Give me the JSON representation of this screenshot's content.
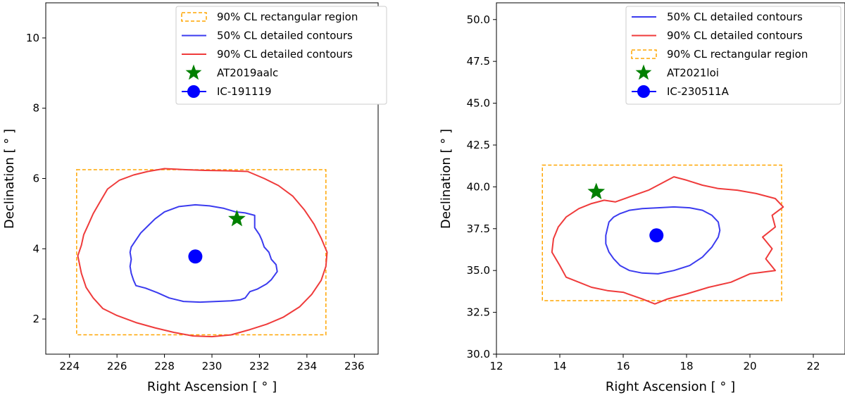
{
  "colors": {
    "blue": "#3b3bef",
    "red": "#ef3b3b",
    "orange": "#ffa500",
    "green": "#008000",
    "ic_blue": "#0000ff"
  },
  "chart_data": [
    {
      "type": "scatter",
      "xlabel": "Right Ascension [$^\\circ$]",
      "xlabel_text": "Right Ascension [ ° ]",
      "ylabel_text": "Declination [ ° ]",
      "xlim": [
        223,
        237
      ],
      "ylim": [
        1,
        11
      ],
      "xticks": [
        224,
        226,
        228,
        230,
        232,
        234,
        236
      ],
      "yticks": [
        2,
        4,
        6,
        8,
        10
      ],
      "legend_position": "top-right",
      "legend": [
        {
          "label": "90% CL rectangular region",
          "kind": "rect",
          "color": "orange"
        },
        {
          "label": "50% CL detailed contours",
          "kind": "line",
          "color": "blue"
        },
        {
          "label": "90% CL detailed contours",
          "kind": "line",
          "color": "red"
        },
        {
          "label": "AT2019aalc",
          "kind": "star",
          "color": "green"
        },
        {
          "label": "IC-191119",
          "kind": "circle",
          "color": "ic_blue"
        }
      ],
      "rect_region": {
        "x": [
          224.3,
          234.8
        ],
        "y": [
          1.55,
          6.25
        ]
      },
      "star": {
        "name": "AT2019aalc",
        "x": 231.05,
        "y": 4.85
      },
      "circle": {
        "name": "IC-191119",
        "x": 229.3,
        "y": 3.78
      },
      "contour_50": [
        [
          226.6,
          4.05
        ],
        [
          226.8,
          4.25
        ],
        [
          227.0,
          4.45
        ],
        [
          227.3,
          4.65
        ],
        [
          227.6,
          4.85
        ],
        [
          228.0,
          5.05
        ],
        [
          228.6,
          5.2
        ],
        [
          229.3,
          5.25
        ],
        [
          229.9,
          5.22
        ],
        [
          230.5,
          5.15
        ],
        [
          231.0,
          5.05
        ],
        [
          231.4,
          5.02
        ],
        [
          231.8,
          4.95
        ],
        [
          231.8,
          4.6
        ],
        [
          232.0,
          4.4
        ],
        [
          232.1,
          4.25
        ],
        [
          232.2,
          4.05
        ],
        [
          232.4,
          3.9
        ],
        [
          232.5,
          3.7
        ],
        [
          232.7,
          3.55
        ],
        [
          232.75,
          3.35
        ],
        [
          232.5,
          3.12
        ],
        [
          232.3,
          3.0
        ],
        [
          231.9,
          2.85
        ],
        [
          231.6,
          2.78
        ],
        [
          231.4,
          2.6
        ],
        [
          231.2,
          2.55
        ],
        [
          230.8,
          2.52
        ],
        [
          230.2,
          2.5
        ],
        [
          229.5,
          2.48
        ],
        [
          228.8,
          2.5
        ],
        [
          228.2,
          2.6
        ],
        [
          227.7,
          2.75
        ],
        [
          227.2,
          2.88
        ],
        [
          226.8,
          2.95
        ],
        [
          226.7,
          3.1
        ],
        [
          226.6,
          3.3
        ],
        [
          226.55,
          3.5
        ],
        [
          226.6,
          3.7
        ],
        [
          226.55,
          3.9
        ]
      ],
      "contour_90": [
        [
          224.35,
          3.8
        ],
        [
          224.5,
          4.1
        ],
        [
          224.6,
          4.4
        ],
        [
          224.8,
          4.7
        ],
        [
          225.0,
          5.0
        ],
        [
          225.3,
          5.35
        ],
        [
          225.6,
          5.7
        ],
        [
          226.1,
          5.95
        ],
        [
          226.7,
          6.1
        ],
        [
          227.3,
          6.2
        ],
        [
          228.0,
          6.28
        ],
        [
          228.9,
          6.25
        ],
        [
          229.7,
          6.23
        ],
        [
          230.6,
          6.22
        ],
        [
          231.5,
          6.2
        ],
        [
          232.2,
          6.0
        ],
        [
          232.8,
          5.8
        ],
        [
          233.4,
          5.5
        ],
        [
          233.9,
          5.1
        ],
        [
          234.3,
          4.7
        ],
        [
          234.6,
          4.3
        ],
        [
          234.85,
          3.9
        ],
        [
          234.8,
          3.5
        ],
        [
          234.6,
          3.1
        ],
        [
          234.2,
          2.7
        ],
        [
          233.7,
          2.35
        ],
        [
          233.0,
          2.05
        ],
        [
          232.3,
          1.85
        ],
        [
          231.6,
          1.7
        ],
        [
          230.8,
          1.55
        ],
        [
          230.0,
          1.5
        ],
        [
          229.2,
          1.52
        ],
        [
          228.4,
          1.62
        ],
        [
          227.6,
          1.75
        ],
        [
          226.8,
          1.9
        ],
        [
          226.0,
          2.1
        ],
        [
          225.4,
          2.3
        ],
        [
          225.0,
          2.6
        ],
        [
          224.7,
          2.9
        ],
        [
          224.5,
          3.3
        ]
      ]
    },
    {
      "type": "scatter",
      "xlabel_text": "Right Ascension [ ° ]",
      "ylabel_text": "Declination [ ° ]",
      "xlim": [
        12,
        23
      ],
      "ylim": [
        30,
        51
      ],
      "xticks": [
        12,
        14,
        16,
        18,
        20,
        22
      ],
      "yticks": [
        30.0,
        32.5,
        35.0,
        37.5,
        40.0,
        42.5,
        45.0,
        47.5,
        50.0
      ],
      "legend_position": "top-right",
      "legend": [
        {
          "label": "50% CL detailed contours",
          "kind": "line",
          "color": "blue"
        },
        {
          "label": "90% CL detailed contours",
          "kind": "line",
          "color": "red"
        },
        {
          "label": "90% CL rectangular region",
          "kind": "rect",
          "color": "orange"
        },
        {
          "label": "AT2021loi",
          "kind": "star",
          "color": "green"
        },
        {
          "label": "IC-230511A",
          "kind": "circle",
          "color": "ic_blue"
        }
      ],
      "rect_region": {
        "x": [
          13.45,
          21.0
        ],
        "y": [
          33.2,
          41.3
        ]
      },
      "star": {
        "name": "AT2021loi",
        "x": 15.15,
        "y": 39.7
      },
      "circle": {
        "name": "IC-230511A",
        "x": 17.05,
        "y": 37.1
      },
      "contour_50": [
        [
          15.5,
          37.5
        ],
        [
          15.55,
          37.9
        ],
        [
          15.7,
          38.2
        ],
        [
          15.9,
          38.4
        ],
        [
          16.2,
          38.6
        ],
        [
          16.6,
          38.7
        ],
        [
          17.1,
          38.75
        ],
        [
          17.6,
          38.8
        ],
        [
          18.1,
          38.75
        ],
        [
          18.5,
          38.6
        ],
        [
          18.8,
          38.3
        ],
        [
          19.0,
          37.9
        ],
        [
          19.05,
          37.4
        ],
        [
          19.0,
          37.0
        ],
        [
          18.8,
          36.4
        ],
        [
          18.5,
          35.8
        ],
        [
          18.1,
          35.3
        ],
        [
          17.6,
          35.0
        ],
        [
          17.1,
          34.8
        ],
        [
          16.6,
          34.85
        ],
        [
          16.2,
          35.0
        ],
        [
          15.9,
          35.3
        ],
        [
          15.7,
          35.7
        ],
        [
          15.55,
          36.1
        ],
        [
          15.45,
          36.6
        ],
        [
          15.45,
          37.1
        ]
      ],
      "contour_90": [
        [
          13.8,
          36.9
        ],
        [
          13.95,
          37.6
        ],
        [
          14.2,
          38.2
        ],
        [
          14.6,
          38.7
        ],
        [
          15.0,
          39.0
        ],
        [
          15.4,
          39.2
        ],
        [
          15.75,
          39.1
        ],
        [
          16.2,
          39.4
        ],
        [
          16.8,
          39.8
        ],
        [
          17.2,
          40.2
        ],
        [
          17.6,
          40.6
        ],
        [
          18.0,
          40.4
        ],
        [
          18.5,
          40.1
        ],
        [
          19.0,
          39.9
        ],
        [
          19.6,
          39.8
        ],
        [
          20.2,
          39.6
        ],
        [
          20.8,
          39.3
        ],
        [
          21.05,
          38.8
        ],
        [
          20.7,
          38.3
        ],
        [
          20.8,
          37.6
        ],
        [
          20.4,
          37.0
        ],
        [
          20.7,
          36.3
        ],
        [
          20.5,
          35.7
        ],
        [
          20.8,
          35.0
        ],
        [
          20.0,
          34.8
        ],
        [
          19.4,
          34.3
        ],
        [
          18.7,
          34.0
        ],
        [
          18.0,
          33.6
        ],
        [
          17.4,
          33.3
        ],
        [
          17.0,
          33.0
        ],
        [
          16.6,
          33.3
        ],
        [
          16.0,
          33.7
        ],
        [
          15.5,
          33.8
        ],
        [
          15.0,
          34.0
        ],
        [
          14.6,
          34.3
        ],
        [
          14.2,
          34.6
        ],
        [
          14.0,
          35.3
        ],
        [
          13.75,
          36.1
        ]
      ]
    }
  ]
}
